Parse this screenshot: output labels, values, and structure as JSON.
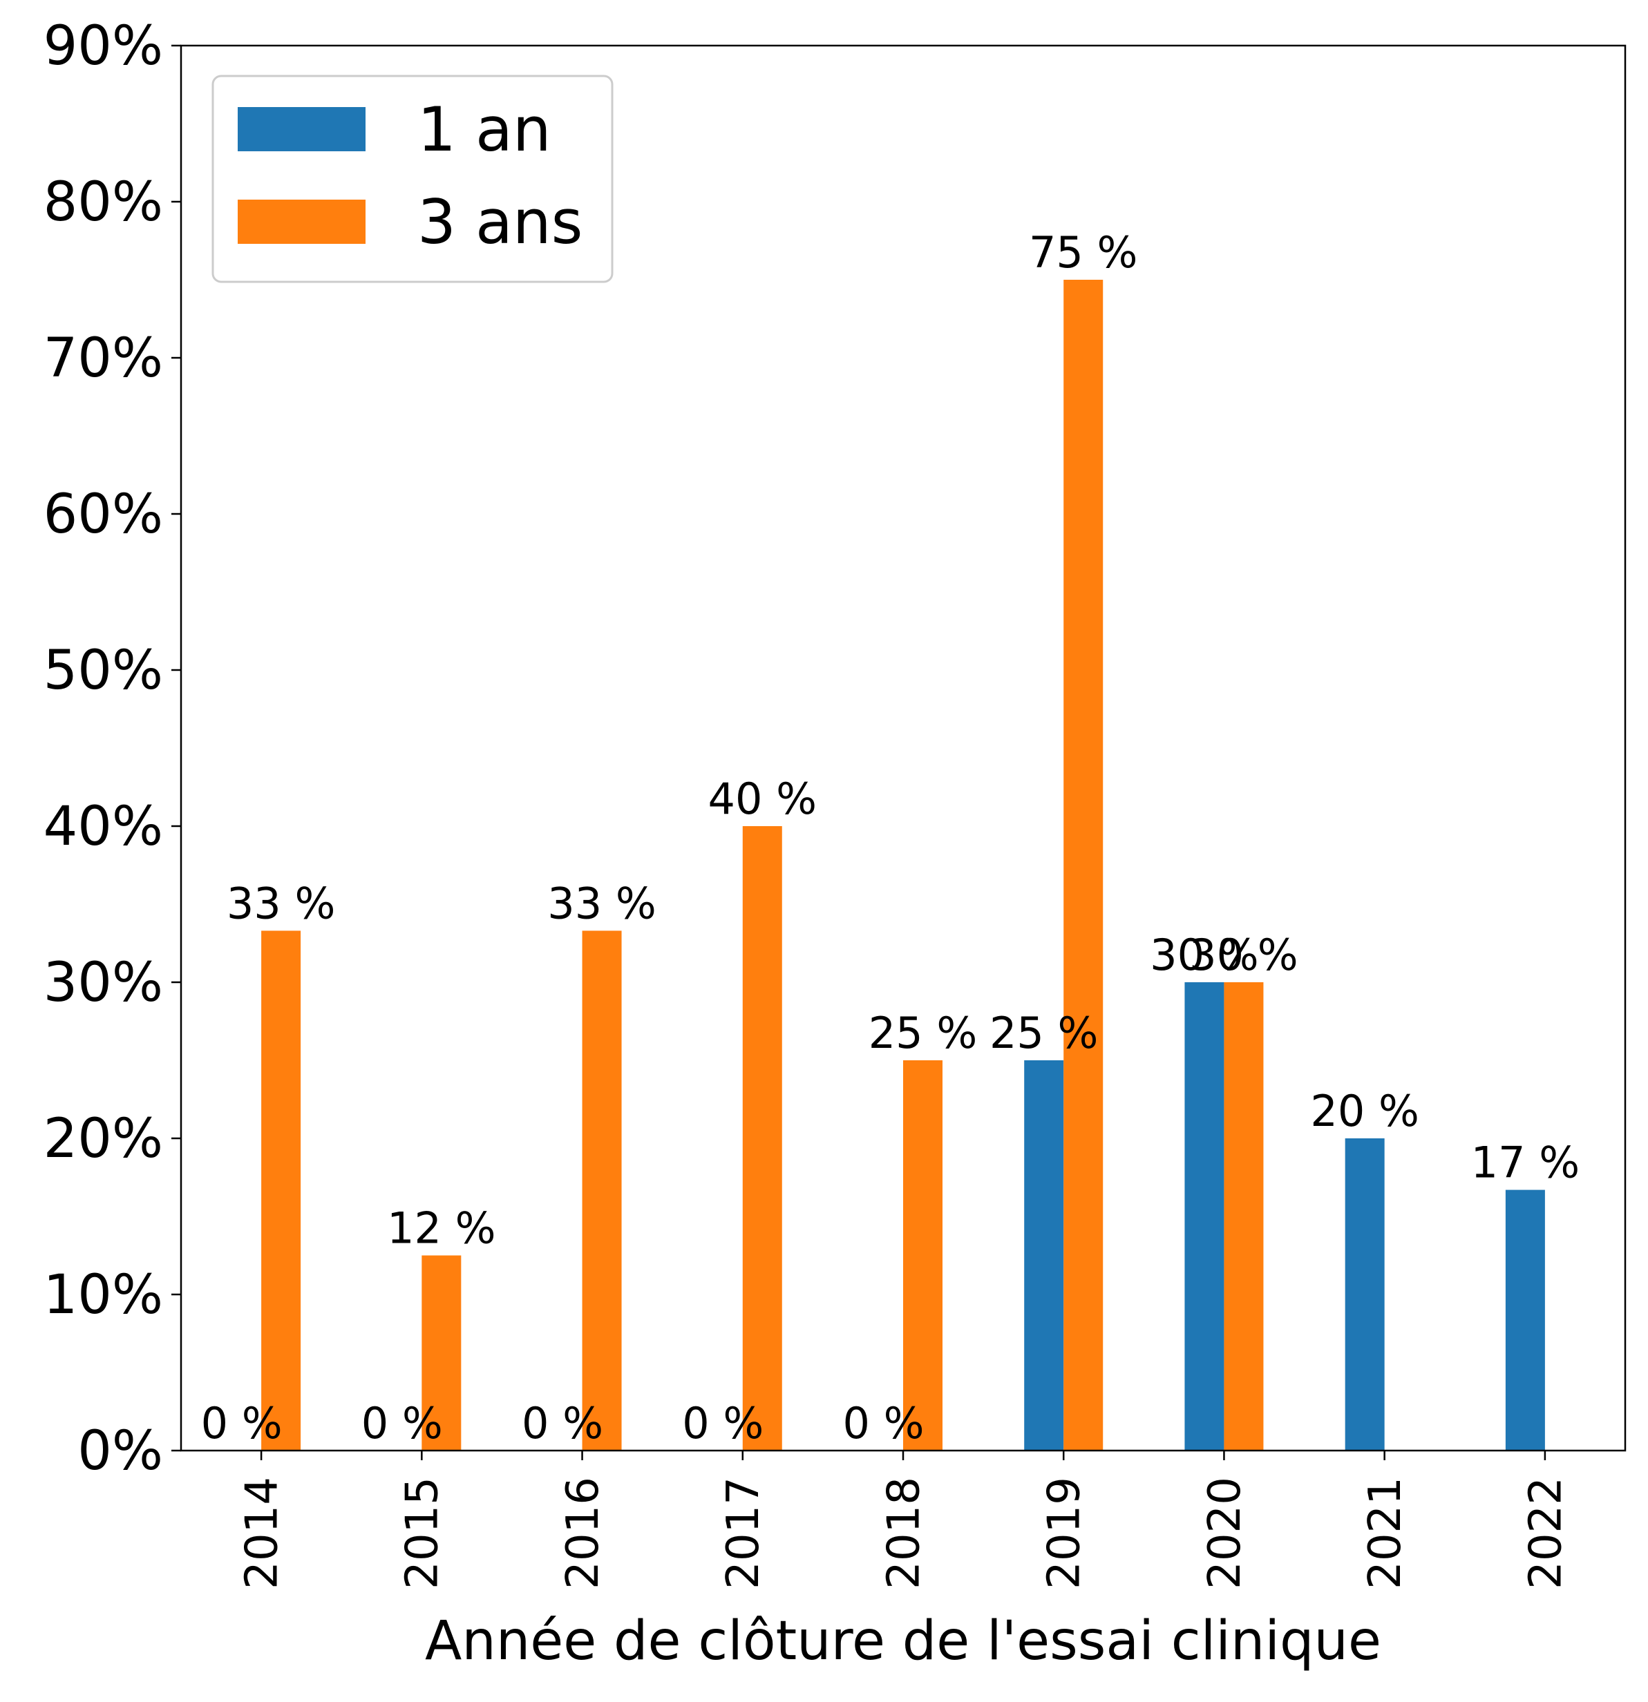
{
  "chart_data": {
    "type": "bar",
    "title": "",
    "xlabel": "Année de clôture de l'essai clinique",
    "ylabel": "",
    "categories": [
      "2014",
      "2015",
      "2016",
      "2017",
      "2018",
      "2019",
      "2020",
      "2021",
      "2022"
    ],
    "series": [
      {
        "name": "1 an",
        "color": "#1f77b4",
        "values": [
          0,
          0,
          0,
          0,
          0,
          25,
          30,
          20,
          16.7
        ],
        "labels": [
          "0 %",
          "0 %",
          "0 %",
          "0 %",
          "0 %",
          "25 %",
          "30 %",
          "20 %",
          "17 %"
        ]
      },
      {
        "name": "3 ans",
        "color": "#ff7f0e",
        "values": [
          33.3,
          12.5,
          33.3,
          40,
          25,
          75,
          30,
          null,
          null
        ],
        "labels": [
          "33 %",
          "12 %",
          "33 %",
          "40 %",
          "25 %",
          "75 %",
          "30 %",
          null,
          null
        ]
      }
    ],
    "ylim": [
      0,
      90
    ],
    "yticks": [
      "0%",
      "10%",
      "20%",
      "30%",
      "40%",
      "50%",
      "60%",
      "70%",
      "80%",
      "90%"
    ],
    "grid": false,
    "legend_position": "top-left"
  }
}
